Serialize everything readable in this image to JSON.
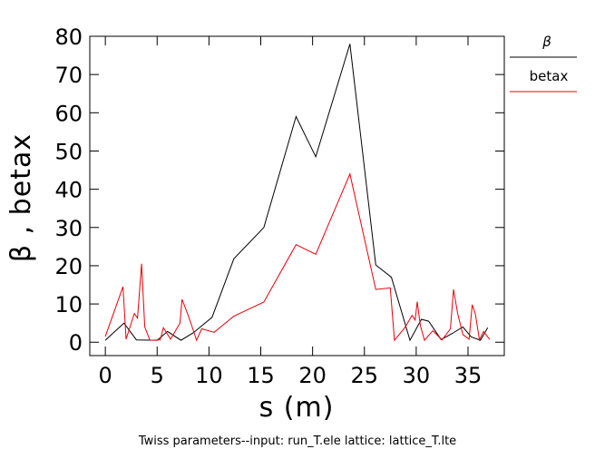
{
  "chart_data": {
    "type": "line",
    "xlabel": "s  (m)",
    "ylabel": "β , betax",
    "xlim": [
      -1.5,
      38.5
    ],
    "ylim": [
      -3.5,
      80
    ],
    "x_ticks": [
      "0",
      "5",
      "10",
      "15",
      "20",
      "25",
      "30",
      "35"
    ],
    "y_ticks": [
      "0",
      "10",
      "20",
      "30",
      "40",
      "50",
      "60",
      "70",
      "80"
    ],
    "legend_position": "right",
    "series": [
      {
        "name": "β",
        "color": "#000000",
        "points": [
          [
            0,
            0.5
          ],
          [
            1.8,
            5
          ],
          [
            3,
            0.6
          ],
          [
            5,
            0.5
          ],
          [
            6,
            2.8
          ],
          [
            7.3,
            0.5
          ],
          [
            8.5,
            2.5
          ],
          [
            10.3,
            6.5
          ],
          [
            12.4,
            21.8
          ],
          [
            15.3,
            30
          ],
          [
            18.4,
            59
          ],
          [
            20.3,
            48.5
          ],
          [
            23.6,
            78
          ],
          [
            26.1,
            20.2
          ],
          [
            27.6,
            17
          ],
          [
            29.4,
            0.5
          ],
          [
            30.5,
            6
          ],
          [
            31.2,
            5.5
          ],
          [
            32.4,
            0.7
          ],
          [
            33.5,
            2.3
          ],
          [
            34.5,
            4
          ],
          [
            35.3,
            1.4
          ],
          [
            36.2,
            0.5
          ],
          [
            36.9,
            3.8
          ]
        ]
      },
      {
        "name": "betax",
        "color": "#e8000b",
        "points": [
          [
            0,
            1.5
          ],
          [
            1.7,
            14.5
          ],
          [
            2,
            0.8
          ],
          [
            2.8,
            7.5
          ],
          [
            3.1,
            6.3
          ],
          [
            3.5,
            20.5
          ],
          [
            3.8,
            4
          ],
          [
            4.3,
            0.5
          ],
          [
            5.3,
            0.6
          ],
          [
            5.6,
            3.8
          ],
          [
            6.3,
            0.8
          ],
          [
            7.2,
            5
          ],
          [
            7.4,
            11.2
          ],
          [
            8,
            7
          ],
          [
            8.5,
            3
          ],
          [
            8.8,
            0.5
          ],
          [
            9.3,
            3.5
          ],
          [
            10.5,
            2.6
          ],
          [
            12.4,
            6.8
          ],
          [
            15.3,
            10.5
          ],
          [
            18.4,
            25.5
          ],
          [
            20.3,
            23
          ],
          [
            23.6,
            44
          ],
          [
            26.1,
            13.8
          ],
          [
            27.5,
            14.2
          ],
          [
            27.9,
            0.5
          ],
          [
            28.9,
            3.8
          ],
          [
            29.6,
            7
          ],
          [
            29.9,
            5.8
          ],
          [
            30.1,
            10.6
          ],
          [
            30.4,
            4.3
          ],
          [
            30.8,
            0.5
          ],
          [
            31.6,
            3
          ],
          [
            32.5,
            0.6
          ],
          [
            33.3,
            3.5
          ],
          [
            33.6,
            13.8
          ],
          [
            34,
            7.5
          ],
          [
            34.5,
            2
          ],
          [
            35.1,
            0.8
          ],
          [
            35.4,
            9.8
          ],
          [
            35.7,
            7.5
          ],
          [
            36.1,
            0.6
          ],
          [
            36.5,
            2.8
          ],
          [
            37.1,
            0.7
          ]
        ]
      }
    ]
  },
  "caption": "Twiss parameters--input: run_T.ele   lattice: lattice_T.lte"
}
